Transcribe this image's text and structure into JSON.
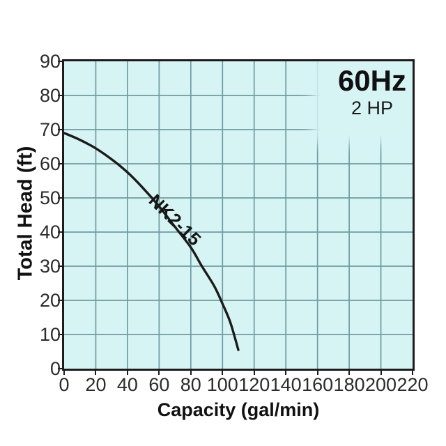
{
  "chart_data": {
    "type": "line",
    "title": "",
    "xlabel": "Capacity (gal/min)",
    "ylabel": "Total Head (ft)",
    "xlim": [
      0,
      220
    ],
    "ylim": [
      0,
      90
    ],
    "xticks": [
      0,
      20,
      40,
      60,
      80,
      100,
      120,
      140,
      160,
      180,
      200,
      220
    ],
    "yticks": [
      0,
      10,
      20,
      30,
      40,
      50,
      60,
      70,
      80,
      90
    ],
    "grid": true,
    "legend_position": "none",
    "colors": {
      "plot_background": "#d7f4f5",
      "grid": "#6f9b9f",
      "frame": "#1c1c1c",
      "curve": "#1b1b1b",
      "text": "#1a1a1a"
    },
    "annotations": [
      {
        "text": "60Hz",
        "position": "top-right",
        "weight": "bold"
      },
      {
        "text": "2 HP",
        "position": "top-right",
        "weight": "regular"
      }
    ],
    "series": [
      {
        "name": "NK2-15",
        "x": [
          0,
          10,
          20,
          30,
          40,
          50,
          60,
          70,
          80,
          87,
          95,
          100,
          105,
          110
        ],
        "y": [
          69,
          67,
          64.5,
          61.3,
          57.5,
          52.8,
          47.5,
          41.5,
          35.5,
          30,
          24,
          19,
          13.5,
          5.5
        ],
        "label_anchor": {
          "x": 70,
          "y": 43.5
        },
        "label_rotation_deg": 44.5
      }
    ]
  }
}
